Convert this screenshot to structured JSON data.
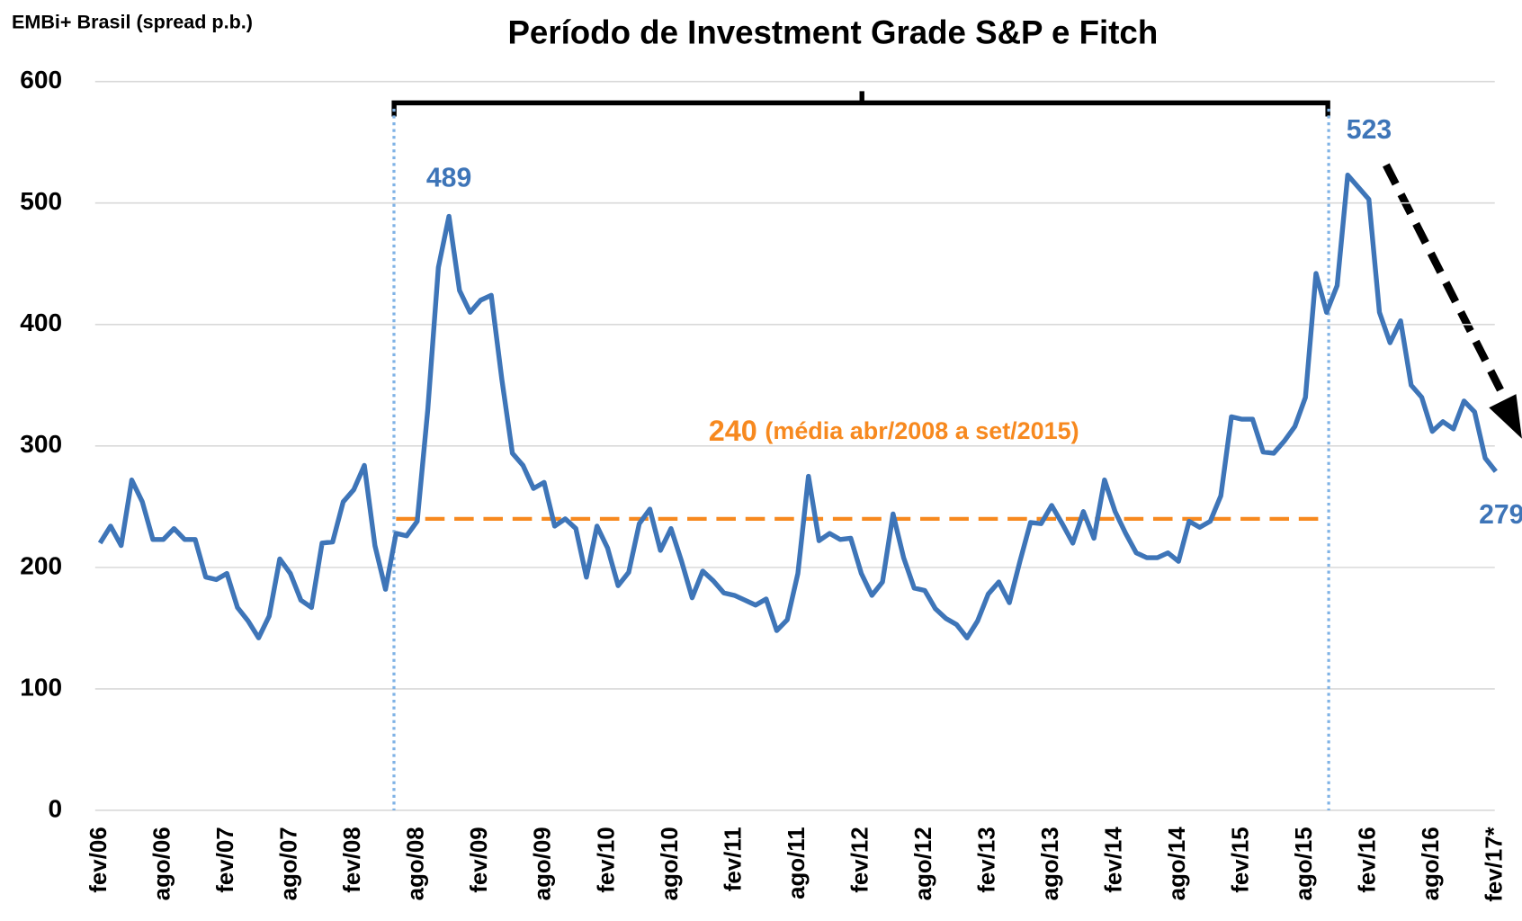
{
  "chart_data": {
    "type": "line",
    "title": "Período de Investment Grade S&P e Fitch",
    "y_label": "EMBi+ Brasil (spread p.b.)",
    "categories": [
      "fev/06",
      null,
      null,
      null,
      null,
      null,
      "ago/06",
      null,
      null,
      null,
      null,
      null,
      "fev/07",
      null,
      null,
      null,
      null,
      null,
      "ago/07",
      null,
      null,
      null,
      null,
      null,
      "fev/08",
      null,
      null,
      null,
      null,
      null,
      "ago/08",
      null,
      null,
      null,
      null,
      null,
      "fev/09",
      null,
      null,
      null,
      null,
      null,
      "ago/09",
      null,
      null,
      null,
      null,
      null,
      "fev/10",
      null,
      null,
      null,
      null,
      null,
      "ago/10",
      null,
      null,
      null,
      null,
      null,
      "fev/11",
      null,
      null,
      null,
      null,
      null,
      "ago/11",
      null,
      null,
      null,
      null,
      null,
      "fev/12",
      null,
      null,
      null,
      null,
      null,
      "ago/12",
      null,
      null,
      null,
      null,
      null,
      "fev/13",
      null,
      null,
      null,
      null,
      null,
      "ago/13",
      null,
      null,
      null,
      null,
      null,
      "fev/14",
      null,
      null,
      null,
      null,
      null,
      "ago/14",
      null,
      null,
      null,
      null,
      null,
      "fev/15",
      null,
      null,
      null,
      null,
      null,
      "ago/15",
      null,
      null,
      null,
      null,
      null,
      "fev/16",
      null,
      null,
      null,
      null,
      null,
      "ago/16",
      null,
      null,
      null,
      null,
      null,
      "fev/17*"
    ],
    "values": [
      220,
      234,
      218,
      272,
      254,
      223,
      223,
      232,
      223,
      223,
      192,
      190,
      195,
      167,
      156,
      142,
      160,
      207,
      195,
      173,
      167,
      220,
      221,
      254,
      264,
      284,
      218,
      182,
      228,
      226,
      238,
      330,
      447,
      489,
      428,
      410,
      420,
      424,
      355,
      294,
      284,
      265,
      270,
      234,
      240,
      232,
      192,
      234,
      216,
      185,
      196,
      236,
      248,
      214,
      232,
      205,
      175,
      197,
      189,
      179,
      177,
      173,
      169,
      174,
      148,
      157,
      195,
      275,
      222,
      228,
      223,
      224,
      195,
      177,
      188,
      244,
      208,
      183,
      181,
      166,
      158,
      153,
      142,
      156,
      178,
      188,
      171,
      205,
      237,
      236,
      251,
      236,
      220,
      246,
      224,
      272,
      246,
      228,
      212,
      208,
      208,
      212,
      205,
      238,
      233,
      238,
      259,
      324,
      322,
      322,
      295,
      294,
      304,
      316,
      340,
      442,
      410,
      432,
      523,
      513,
      503,
      410,
      385,
      403,
      350,
      340,
      312,
      320,
      314,
      337,
      328,
      290,
      279
    ],
    "color": "#3E75B8",
    "average": 240,
    "average_label": "(média abr/2008 a set/2015)",
    "average_color": "#F7891F",
    "ylim": [
      0,
      600
    ],
    "yticks": [
      0,
      100,
      200,
      300,
      400,
      500,
      600
    ],
    "grid": true
  }
}
